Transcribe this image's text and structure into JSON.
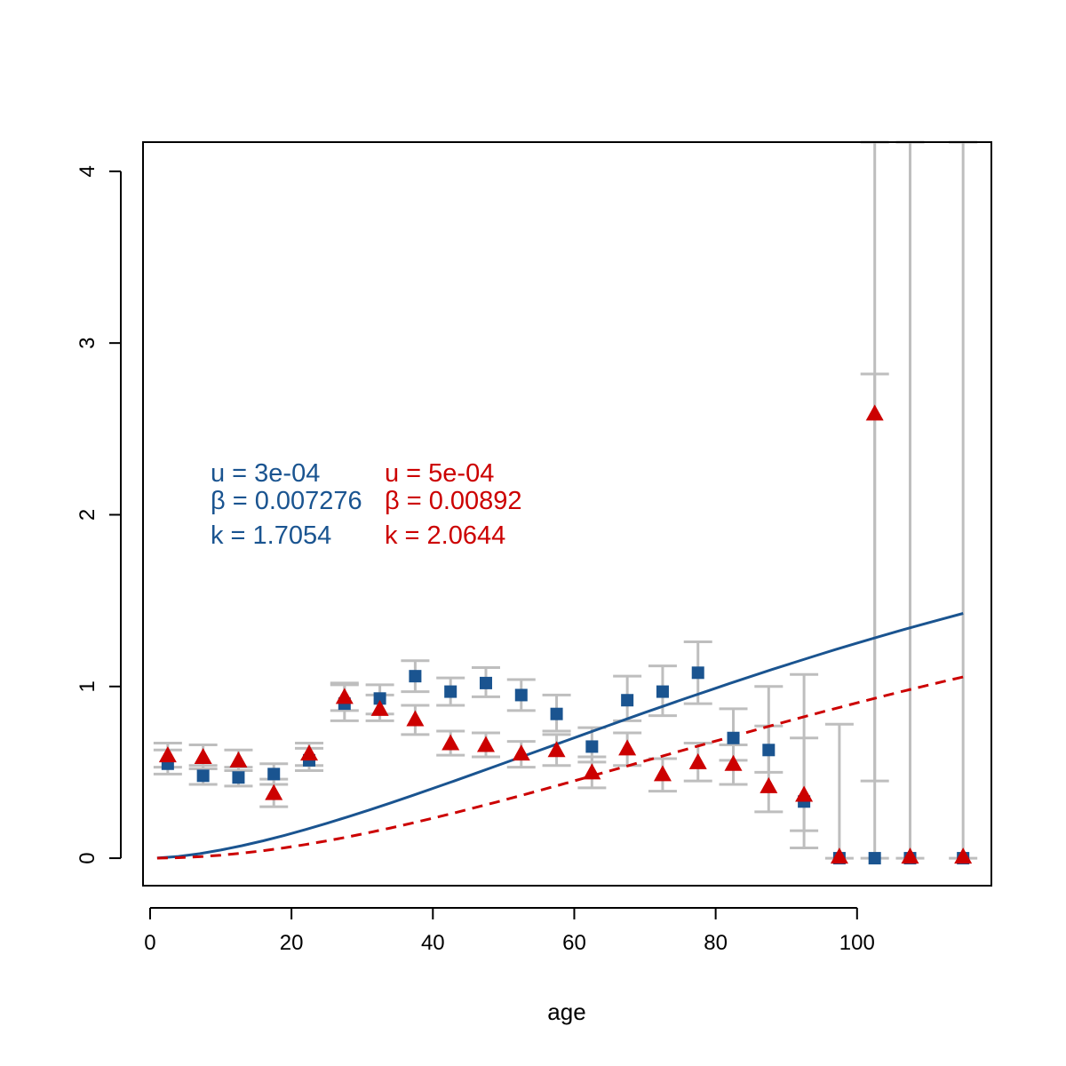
{
  "chart_data": {
    "type": "scatter",
    "title": "",
    "xlabel": "age",
    "ylabel": "",
    "xlim": [
      -1,
      119
    ],
    "ylim": [
      -0.16,
      4.17
    ],
    "x_ticks": [
      0,
      20,
      40,
      60,
      80,
      100
    ],
    "y_ticks": [
      0,
      1,
      2,
      3,
      4
    ],
    "x_tick_labels": [
      "0",
      "20",
      "40",
      "60",
      "80",
      "100"
    ],
    "y_tick_labels": [
      "0",
      "1",
      "2",
      "3",
      "4"
    ],
    "grid": false,
    "colors": {
      "blue": "#1a5490",
      "red": "#cc0000",
      "errorbar": "#bebebe"
    },
    "series": [
      {
        "color": "#1a5490",
        "marker": "square",
        "x": [
          2.5,
          7.5,
          12.5,
          17.5,
          22.5,
          27.5,
          32.5,
          37.5,
          42.5,
          47.5,
          52.5,
          57.5,
          62.5,
          67.5,
          72.5,
          77.5,
          82.5,
          87.5,
          92.5,
          97.5,
          102.5,
          107.5,
          115
        ],
        "y": [
          0.55,
          0.48,
          0.47,
          0.49,
          0.57,
          0.9,
          0.93,
          1.06,
          0.97,
          1.02,
          0.95,
          0.84,
          0.65,
          0.92,
          0.97,
          1.08,
          0.7,
          0.63,
          0.33,
          0.0,
          0.0,
          0.0,
          0.0
        ],
        "err_low": [
          0.49,
          0.43,
          0.42,
          0.43,
          0.51,
          0.8,
          0.84,
          0.97,
          0.89,
          0.94,
          0.86,
          0.74,
          0.56,
          0.8,
          0.83,
          0.9,
          0.57,
          0.5,
          0.16,
          0.0,
          0.0,
          0.0,
          0.0
        ],
        "err_high": [
          0.63,
          0.54,
          0.53,
          0.55,
          0.64,
          1.01,
          1.01,
          1.15,
          1.05,
          1.11,
          1.04,
          0.95,
          0.76,
          1.06,
          1.12,
          1.26,
          0.87,
          0.77,
          0.7,
          0.78,
          4.17,
          4.17,
          4.17
        ],
        "fit": {
          "u": 0.0003,
          "beta": 0.007276,
          "k": 1.7054,
          "style": "solid"
        }
      },
      {
        "color": "#cc0000",
        "marker": "triangle",
        "x": [
          2.5,
          7.5,
          12.5,
          17.5,
          22.5,
          27.5,
          32.5,
          37.5,
          42.5,
          47.5,
          52.5,
          57.5,
          62.5,
          67.5,
          72.5,
          77.5,
          82.5,
          87.5,
          92.5,
          97.5,
          102.5,
          107.5,
          115
        ],
        "y": [
          0.6,
          0.59,
          0.57,
          0.38,
          0.61,
          0.94,
          0.87,
          0.81,
          0.67,
          0.66,
          0.61,
          0.63,
          0.5,
          0.64,
          0.49,
          0.56,
          0.55,
          0.42,
          0.37,
          0.01,
          2.59,
          0.01,
          0.01
        ],
        "err_low": [
          0.53,
          0.52,
          0.51,
          0.3,
          0.54,
          0.86,
          0.8,
          0.72,
          0.6,
          0.59,
          0.53,
          0.54,
          0.41,
          0.54,
          0.39,
          0.45,
          0.43,
          0.27,
          0.06,
          0.0,
          0.45,
          0.0,
          0.0
        ],
        "err_high": [
          0.67,
          0.66,
          0.63,
          0.46,
          0.67,
          1.02,
          0.95,
          0.89,
          0.74,
          0.73,
          0.68,
          0.72,
          0.59,
          0.73,
          0.58,
          0.67,
          0.66,
          1.0,
          1.07,
          0.0,
          2.82,
          0.0,
          0.0
        ],
        "fit": {
          "u": 0.0005,
          "beta": 0.00892,
          "k": 2.0644,
          "style": "dashed"
        }
      }
    ],
    "curve_x": [
      1,
      4,
      7,
      10,
      13,
      16,
      19,
      22,
      25,
      28,
      31,
      34,
      37,
      40,
      43,
      46,
      49,
      52,
      55,
      58,
      61,
      64,
      67,
      70,
      73,
      76,
      79,
      82,
      85,
      88,
      91,
      94,
      97,
      100,
      103,
      106,
      109,
      112,
      115
    ],
    "annotations": {
      "blue": [
        "u = 3e-04",
        "β = 0.007276",
        "k =  1.7054"
      ],
      "red": [
        "u = 5e-04",
        "β = 0.00892",
        "k =  2.0644"
      ]
    }
  }
}
